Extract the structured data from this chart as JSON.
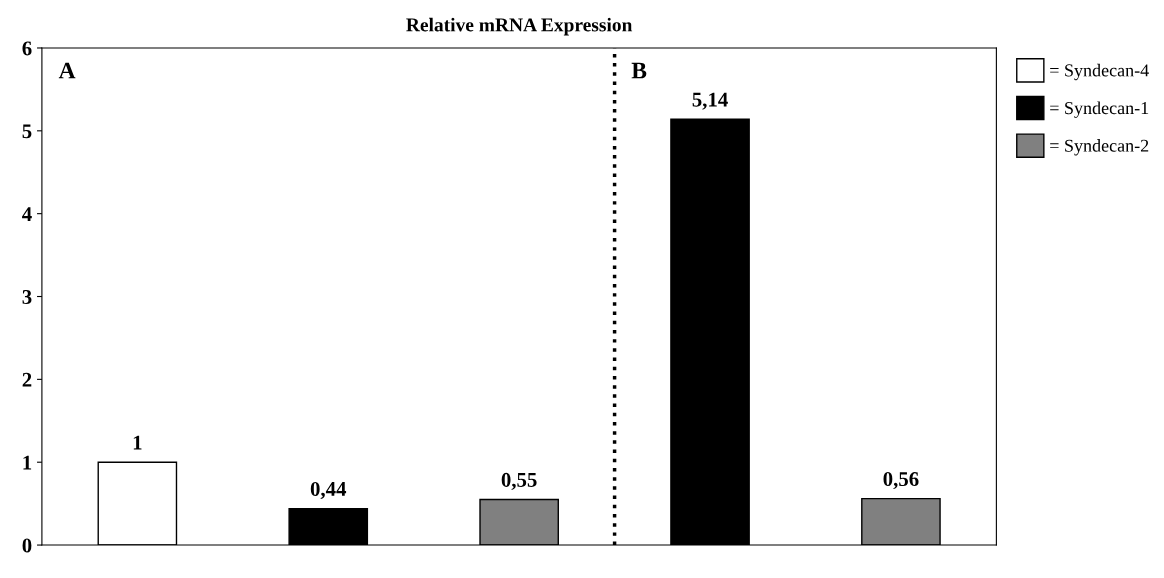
{
  "chart_data": {
    "type": "bar",
    "title": "Relative mRNA Expression",
    "categories": [
      null,
      null,
      null,
      null,
      null
    ],
    "series": [
      {
        "name": "= Syndecan-4",
        "color": "#ffffff",
        "values": [
          1,
          null,
          null,
          null,
          null
        ],
        "value_labels": [
          "1",
          null,
          null,
          null,
          null
        ]
      },
      {
        "name": "= Syndecan-1",
        "color": "#000000",
        "values": [
          null,
          0.44,
          null,
          5.14,
          null
        ],
        "value_labels": [
          null,
          "0,44",
          null,
          "5,14",
          null
        ]
      },
      {
        "name": "= Syndecan-2",
        "color": "#808080",
        "values": [
          null,
          null,
          0.55,
          null,
          0.56
        ],
        "value_labels": [
          null,
          null,
          "0,55",
          null,
          "0,56"
        ]
      }
    ],
    "ylim": [
      0,
      6
    ],
    "yticks": [
      0,
      1,
      2,
      3,
      4,
      5,
      6
    ],
    "annotations": [
      "A",
      "B"
    ],
    "grid": false,
    "legend": "top right",
    "tick_labels": "y"
  }
}
